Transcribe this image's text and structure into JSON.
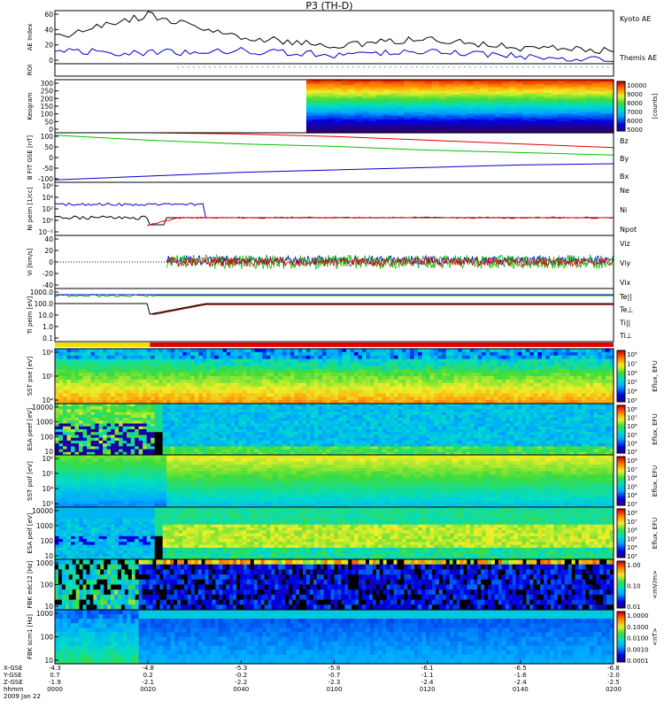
{
  "title": "P3 (TH-D)",
  "colors": {
    "kyoto": "#0000cc",
    "themis": "#000000",
    "red": "#e00000",
    "green": "#00c000",
    "blue": "#0000cc",
    "roi_dot": "#2aa8a8"
  },
  "panels": [
    {
      "id": "ae",
      "ylabel": "AE Index",
      "yticks": [
        "60",
        "40",
        "20",
        "0"
      ],
      "legend": [
        "Kyoto AE",
        "Themis AE"
      ],
      "legend_colors": [
        "#0000cc",
        "#000000"
      ]
    },
    {
      "id": "roi",
      "ylabel": "ROI",
      "yticks": [],
      "legend": []
    },
    {
      "id": "keogram",
      "ylabel": "Keogram",
      "yticks": [
        "300",
        "250",
        "200",
        "150",
        "100",
        "50",
        "0"
      ],
      "cbar_ticks": [
        "10000",
        "9000",
        "8000",
        "7000",
        "6000",
        "5000"
      ],
      "cbar_label": "[counts]"
    },
    {
      "id": "bfit",
      "ylabel": "B FIT GSE [nT]",
      "yticks": [
        "100",
        "50",
        "0",
        "-50",
        "-100"
      ],
      "legend": [
        "Bz",
        "By",
        "Bx"
      ],
      "legend_colors": [
        "#e00000",
        "#00c000",
        "#0000cc"
      ]
    },
    {
      "id": "ni",
      "ylabel": "Ni peim [1/cc]",
      "yticks": [
        "10⁶",
        "10⁴",
        "10²",
        "10⁰",
        "10⁻²"
      ],
      "legend": [
        "Ne",
        "Ni",
        "Npot"
      ],
      "legend_colors": [
        "#e00000",
        "#000000",
        "#0000cc"
      ]
    },
    {
      "id": "vi",
      "ylabel": "Vi [km/s]",
      "yticks": [
        "40",
        "20",
        "0",
        "-20",
        "-40"
      ],
      "legend": [
        "Viz",
        "Viy",
        "Vix"
      ],
      "legend_colors": [
        "#e00000",
        "#00c000",
        "#0000cc"
      ]
    },
    {
      "id": "ti",
      "ylabel": "Ti peim [eV]",
      "yticks": [
        "1000.0",
        "100.0",
        "10.0",
        "1.0",
        "0.1"
      ],
      "legend": [
        "Te||",
        "Te⊥",
        "Ti||",
        "Ti⊥"
      ],
      "legend_colors": [
        "#000000",
        "#e00000",
        "#00c000",
        "#0000cc"
      ]
    },
    {
      "id": "sst1",
      "ylabel": "SST pse [eV]",
      "yticks": [
        "10⁶",
        "10⁵",
        "10⁴"
      ],
      "cbar_ticks": [
        "10⁸",
        "10⁷",
        "10⁶",
        "10⁵",
        "10⁴",
        "10³"
      ],
      "cbar_label": "Eflux, EFU"
    },
    {
      "id": "esa1",
      "ylabel": "ESA peef [eV]",
      "yticks": [
        "10000",
        "1000",
        "100",
        "10"
      ],
      "cbar_ticks": [
        "10⁸",
        "10⁷",
        "10⁶",
        "10⁵",
        "10⁴",
        "10³"
      ],
      "cbar_label": "Eflux, EFU"
    },
    {
      "id": "sst2",
      "ylabel": "SST psif [eV]",
      "yticks": [
        "10⁶",
        "10⁵",
        "10⁴",
        "10³"
      ],
      "cbar_ticks": [
        "10⁸",
        "10⁷",
        "10⁶",
        "10⁵",
        "10⁴",
        "10³"
      ],
      "cbar_label": "Eflux, EFU"
    },
    {
      "id": "esa2",
      "ylabel": "ESA peif [eV]",
      "yticks": [
        "10000",
        "1000",
        "100",
        "10"
      ],
      "cbar_ticks": [
        "10⁸",
        "10⁷",
        "10⁶",
        "10⁵",
        "10⁴",
        "10³"
      ],
      "cbar_label": "Eflux, EFU"
    },
    {
      "id": "fbk1",
      "ylabel": "FBK edc12 [Hz]",
      "yticks": [
        "1000",
        "100",
        "10"
      ],
      "cbar_ticks": [
        "1.00",
        "0.10",
        "0.01"
      ],
      "cbar_label": "<mV/m>"
    },
    {
      "id": "fbk2",
      "ylabel": "FBK scm1 [Hz]",
      "yticks": [
        "1000",
        "100",
        "10"
      ],
      "cbar_ticks": [
        "1.0000",
        "0.1000",
        "0.0100",
        "0.0010",
        "0.0001"
      ],
      "cbar_label": "<nT>"
    }
  ],
  "xaxis": {
    "row_labels": [
      "X-GSE",
      "Y-GSE",
      "Z-GSE",
      "hhmm",
      "2009 Jan 22"
    ],
    "ticks": [
      {
        "x": "-4.3",
        "y": "0.7",
        "z": "-1.9",
        "t": "0000"
      },
      {
        "x": "-4.8",
        "y": "0.2",
        "z": "-2.1",
        "t": "0020"
      },
      {
        "x": "-5.3",
        "y": "-0.2",
        "z": "-2.2",
        "t": "0040"
      },
      {
        "x": "-5.8",
        "y": "-0.7",
        "z": "-2.3",
        "t": "0100"
      },
      {
        "x": "-6.1",
        "y": "-1.1",
        "z": "-2.4",
        "t": "0120"
      },
      {
        "x": "-6.5",
        "y": "-1.6",
        "z": "-2.4",
        "t": "0140"
      },
      {
        "x": "-6.8",
        "y": "-2.0",
        "z": "-2.5",
        "t": "0200"
      }
    ]
  },
  "chart_data": {
    "type": "line",
    "title": "P3 (TH-D)",
    "x": [
      "0000",
      "0020",
      "0040",
      "0100",
      "0120",
      "0140",
      "0200"
    ],
    "series": [
      {
        "name": "Themis AE",
        "values": [
          30,
          55,
          30,
          20,
          28,
          18,
          15
        ]
      },
      {
        "name": "Kyoto AE",
        "values": [
          15,
          12,
          15,
          10,
          15,
          8,
          6
        ]
      },
      {
        "name": "Bz",
        "values": [
          110,
          105,
          95,
          85,
          70,
          55,
          40
        ]
      },
      {
        "name": "By",
        "values": [
          90,
          70,
          55,
          45,
          30,
          20,
          10
        ]
      },
      {
        "name": "Bx",
        "values": [
          -90,
          -75,
          -60,
          -50,
          -40,
          -30,
          -25
        ]
      }
    ],
    "xlabel": "hhmm",
    "ylim_ae": [
      0,
      60
    ],
    "ylim_b": [
      -100,
      100
    ]
  }
}
